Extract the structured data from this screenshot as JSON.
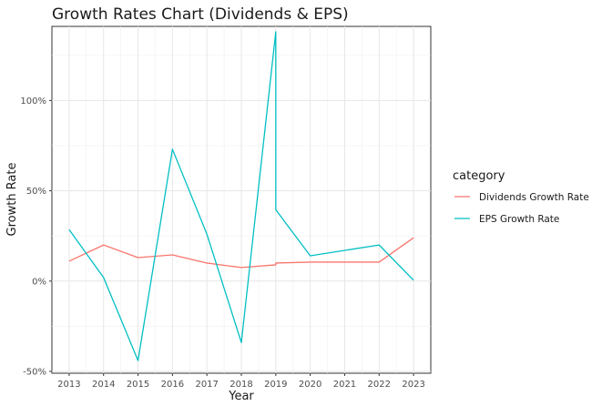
{
  "chart_data": {
    "type": "line",
    "title": "Growth Rates Chart (Dividends & EPS)",
    "xlabel": "Year",
    "ylabel": "Growth Rate",
    "x_ticks": [
      "2013",
      "2014",
      "2015",
      "2016",
      "2017",
      "2018",
      "2019",
      "2020",
      "2021",
      "2022",
      "2023"
    ],
    "y_ticks": [
      {
        "value": -50,
        "label": "-50%"
      },
      {
        "value": 0,
        "label": "0%"
      },
      {
        "value": 50,
        "label": "50%"
      },
      {
        "value": 100,
        "label": "100%"
      }
    ],
    "xlim": [
      2012.5,
      2023.5
    ],
    "ylim": [
      -51,
      141
    ],
    "grid": true,
    "legend": {
      "title": "category",
      "placement": "right"
    },
    "series": [
      {
        "name": "Dividends Growth Rate",
        "color": "#F8766D",
        "points": [
          [
            2013,
            11
          ],
          [
            2014,
            20
          ],
          [
            2015,
            13
          ],
          [
            2016,
            14.5
          ],
          [
            2017,
            10
          ],
          [
            2018,
            7.5
          ],
          [
            2019,
            9
          ],
          [
            2019,
            10
          ],
          [
            2020,
            10.5
          ],
          [
            2022,
            10.5
          ],
          [
            2023,
            24
          ]
        ]
      },
      {
        "name": "EPS Growth Rate",
        "color": "#00BFC4",
        "points": [
          [
            2013,
            28.5
          ],
          [
            2014,
            2
          ],
          [
            2015,
            -44
          ],
          [
            2016,
            73
          ],
          [
            2017,
            26
          ],
          [
            2018,
            -34
          ],
          [
            2019,
            138
          ],
          [
            2019,
            39.5
          ],
          [
            2020,
            14
          ],
          [
            2022,
            20
          ],
          [
            2023,
            0.5
          ]
        ]
      }
    ]
  }
}
